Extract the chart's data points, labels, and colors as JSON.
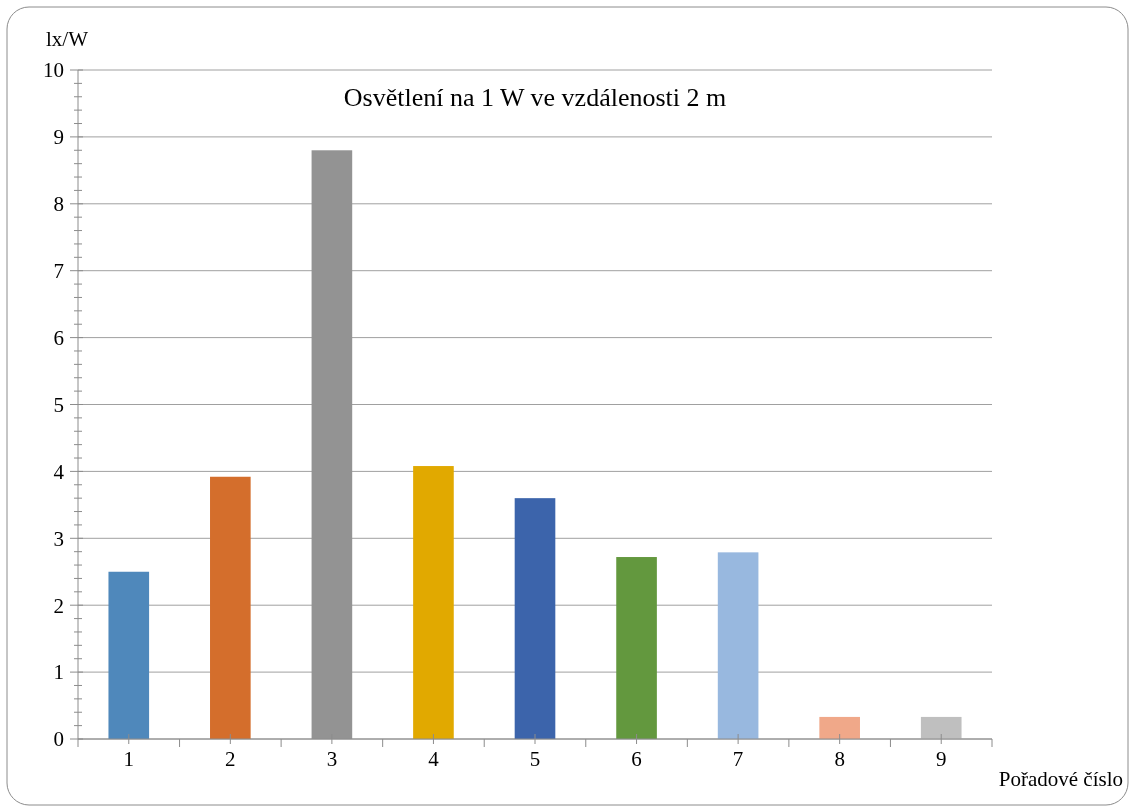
{
  "chart_data": {
    "type": "bar",
    "title": "Osvětlení na 1 W ve vzdálenosti 2 m",
    "xlabel": "Pořadové číslo",
    "ylabel": "lx/W",
    "categories": [
      "1",
      "2",
      "3",
      "4",
      "5",
      "6",
      "7",
      "8",
      "9"
    ],
    "values": [
      2.5,
      3.92,
      8.8,
      4.08,
      3.6,
      2.72,
      2.79,
      0.33,
      0.33
    ],
    "colors": [
      "#4f88bb",
      "#d46e2c",
      "#939393",
      "#e1a900",
      "#3c64ab",
      "#63983e",
      "#98b8df",
      "#f0a889",
      "#bfbfbf"
    ],
    "ylim": [
      0,
      10
    ],
    "yticks": [
      0,
      1,
      2,
      3,
      4,
      5,
      6,
      7,
      8,
      9,
      10
    ],
    "grid": "y"
  }
}
